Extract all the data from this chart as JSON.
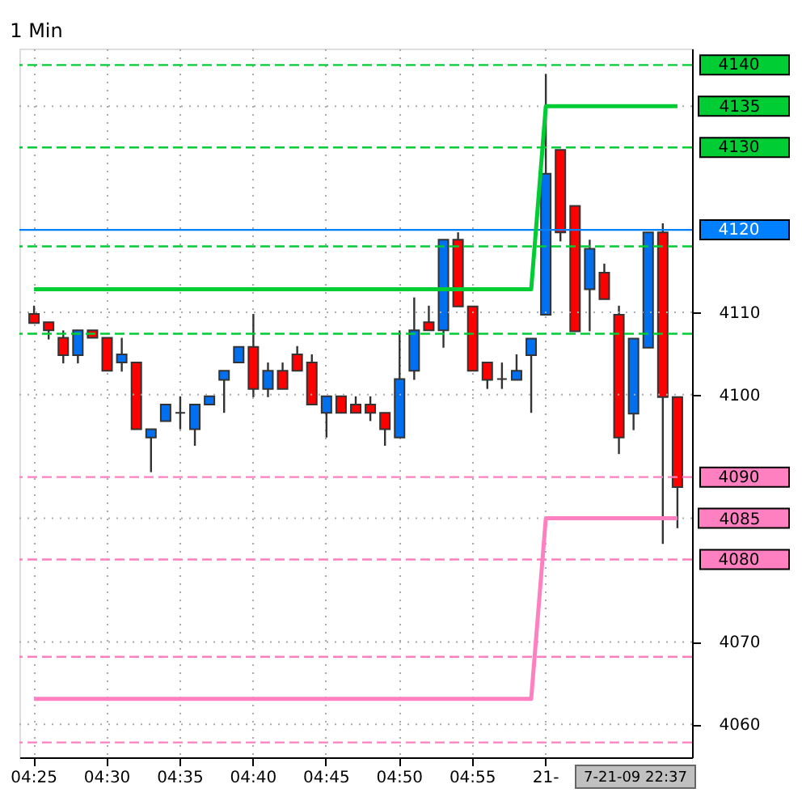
{
  "chart_data": {
    "type": "candlestick",
    "title": "1 Min",
    "categories": [
      "04:25",
      null,
      null,
      null,
      null,
      "04:30",
      null,
      null,
      null,
      null,
      "04:35",
      null,
      null,
      null,
      null,
      "04:40",
      null,
      null,
      null,
      null,
      "04:45",
      null,
      null,
      null,
      null,
      "04:50",
      null,
      null,
      null,
      null,
      "04:55",
      null,
      null,
      null,
      null,
      "21-",
      null,
      null,
      null,
      null,
      null,
      null,
      null,
      null,
      null
    ],
    "ohlc": [
      [
        4109.8,
        4110.8,
        4108.7,
        4108.7
      ],
      [
        4108.8,
        4108.8,
        4106.7,
        4107.8
      ],
      [
        4106.9,
        4107.8,
        4103.8,
        4104.8
      ],
      [
        4104.8,
        4107.8,
        4103.8,
        4107.8
      ],
      [
        4107.8,
        4107.8,
        4106.9,
        4106.9
      ],
      [
        4106.9,
        4106.9,
        4102.9,
        4102.9
      ],
      [
        4103.9,
        4106.9,
        4102.8,
        4104.9
      ],
      [
        4103.9,
        4103.9,
        4095.8,
        4095.8
      ],
      [
        4094.8,
        4095.8,
        4090.6,
        4095.8
      ],
      [
        4096.8,
        4098.8,
        4096.8,
        4098.8
      ],
      [
        4097.8,
        4099.8,
        4095.8,
        4097.8
      ],
      [
        4095.8,
        4098.8,
        4093.8,
        4098.8
      ],
      [
        4098.8,
        4099.8,
        4098.8,
        4099.8
      ],
      [
        4101.8,
        4102.9,
        4097.8,
        4102.9
      ],
      [
        4103.9,
        4105.8,
        4103.9,
        4105.8
      ],
      [
        4105.8,
        4109.8,
        4099.7,
        4100.7
      ],
      [
        4100.7,
        4103.9,
        4099.7,
        4102.9
      ],
      [
        4102.9,
        4103.9,
        4100.7,
        4100.7
      ],
      [
        4104.9,
        4105.9,
        4102.9,
        4102.9
      ],
      [
        4103.9,
        4104.9,
        4098.8,
        4098.8
      ],
      [
        4097.8,
        4099.8,
        4094.8,
        4099.8
      ],
      [
        4099.8,
        4099.8,
        4097.8,
        4097.8
      ],
      [
        4098.8,
        4099.8,
        4097.8,
        4097.8
      ],
      [
        4098.8,
        4099.8,
        4096.8,
        4097.8
      ],
      [
        4097.8,
        4097.8,
        4093.8,
        4095.8
      ],
      [
        4094.8,
        4107.8,
        4094.8,
        4101.9
      ],
      [
        4102.9,
        4111.8,
        4101.8,
        4107.8
      ],
      [
        4108.8,
        4110.8,
        4107.8,
        4107.8
      ],
      [
        4107.8,
        4118.8,
        4105.7,
        4118.8
      ],
      [
        4118.8,
        4119.7,
        4110.7,
        4110.7
      ],
      [
        4110.7,
        4110.7,
        4102.9,
        4102.9
      ],
      [
        4103.9,
        4103.9,
        4100.7,
        4101.8
      ],
      [
        4101.9,
        4103.9,
        4100.7,
        4101.9
      ],
      [
        4101.8,
        4104.9,
        4101.8,
        4102.9
      ],
      [
        4104.8,
        4106.8,
        4097.8,
        4106.8
      ],
      [
        4109.7,
        4138.9,
        4109.7,
        4126.8
      ],
      [
        4129.7,
        4129.7,
        4118.6,
        4119.7
      ],
      [
        4122.9,
        4122.9,
        4107.7,
        4107.7
      ],
      [
        4112.8,
        4118.8,
        4107.7,
        4117.7
      ],
      [
        4114.8,
        4115.9,
        4111.6,
        4111.6
      ],
      [
        4109.7,
        4110.8,
        4092.8,
        4094.8
      ],
      [
        4097.7,
        4106.8,
        4095.7,
        4106.8
      ],
      [
        4105.7,
        4119.7,
        4105.7,
        4119.7
      ],
      [
        4119.7,
        4120.8,
        4081.9,
        4099.7
      ],
      [
        4099.7,
        4099.7,
        4083.8,
        4088.8
      ]
    ],
    "colors": [
      "#ff0000",
      "#ff0000",
      "#ff0000",
      "#0070f0",
      "#ff0000",
      "#ff0000",
      "#0070f0",
      "#ff0000",
      "#0070f0",
      "#0070f0",
      "#333333",
      "#0070f0",
      "#0070f0",
      "#0070f0",
      "#0070f0",
      "#ff0000",
      "#0070f0",
      "#ff0000",
      "#ff0000",
      "#ff0000",
      "#0070f0",
      "#ff0000",
      "#ff0000",
      "#ff0000",
      "#ff0000",
      "#0070f0",
      "#0070f0",
      "#ff0000",
      "#0070f0",
      "#ff0000",
      "#ff0000",
      "#ff0000",
      "#333333",
      "#0070f0",
      "#0070f0",
      "#0070f0",
      "#ff0000",
      "#ff0000",
      "#0070f0",
      "#ff0000",
      "#ff0000",
      "#0070f0",
      "#0070f0",
      "#ff0000",
      "#ff0000"
    ],
    "series": [
      {
        "type": "line",
        "color": "#00cc33",
        "values": [
          4112.8,
          4112.8,
          4112.8,
          4112.8,
          4112.8,
          4112.8,
          4112.8,
          4112.8,
          4112.8,
          4112.8,
          4112.8,
          4112.8,
          4112.8,
          4112.8,
          4112.8,
          4112.8,
          4112.8,
          4112.8,
          4112.8,
          4112.8,
          4112.8,
          4112.8,
          4112.8,
          4112.8,
          4112.8,
          4112.8,
          4112.8,
          4112.8,
          4112.8,
          4112.8,
          4112.8,
          4112.8,
          4112.8,
          4112.8,
          4112.8,
          4135,
          4135,
          4135,
          4135,
          4135,
          4135,
          4135,
          4135,
          4135,
          4135
        ]
      },
      {
        "type": "line",
        "color": "#ff80c0",
        "values": [
          4063.1,
          4063.1,
          4063.1,
          4063.1,
          4063.1,
          4063.1,
          4063.1,
          4063.1,
          4063.1,
          4063.1,
          4063.1,
          4063.1,
          4063.1,
          4063.1,
          4063.1,
          4063.1,
          4063.1,
          4063.1,
          4063.1,
          4063.1,
          4063.1,
          4063.1,
          4063.1,
          4063.1,
          4063.1,
          4063.1,
          4063.1,
          4063.1,
          4063.1,
          4063.1,
          4063.1,
          4063.1,
          4063.1,
          4063.1,
          4063.1,
          4085,
          4085,
          4085,
          4085,
          4085,
          4085,
          4085,
          4085,
          4085,
          4085
        ]
      }
    ],
    "ref_lines": [
      {
        "axis": "y",
        "value": 4140,
        "label": "4140",
        "color": "#00cc33",
        "line_style": "dashed"
      },
      {
        "axis": "y",
        "value": 4130,
        "label": "4130",
        "color": "#00cc33",
        "line_style": "dashed"
      },
      {
        "axis": "y",
        "value": 4120,
        "label": "4120",
        "color": "#0080ff",
        "line_style": "solid"
      },
      {
        "axis": "y",
        "value": 4118,
        "color": "#00cc33",
        "line_style": "dashed"
      },
      {
        "axis": "y",
        "value": 4107.4,
        "color": "#00cc33",
        "line_style": "dashed"
      },
      {
        "axis": "y",
        "value": 4090,
        "label": "4090",
        "color": "#ff80c0",
        "line_style": "dashed"
      },
      {
        "axis": "y",
        "value": 4080,
        "label": "4080",
        "color": "#ff80c0",
        "line_style": "dashed"
      },
      {
        "axis": "y",
        "value": 4068.2,
        "color": "#ff80c0",
        "line_style": "dashed"
      },
      {
        "axis": "y",
        "value": 4057.8,
        "color": "#ff80c0",
        "line_style": "dashed"
      }
    ],
    "annotations": [
      "7-21-09 22:37"
    ],
    "ylim": [
      4056,
      4142
    ],
    "yticks": [
      4060,
      4070,
      4085,
      4100,
      4110,
      4135
    ],
    "grid": true
  }
}
